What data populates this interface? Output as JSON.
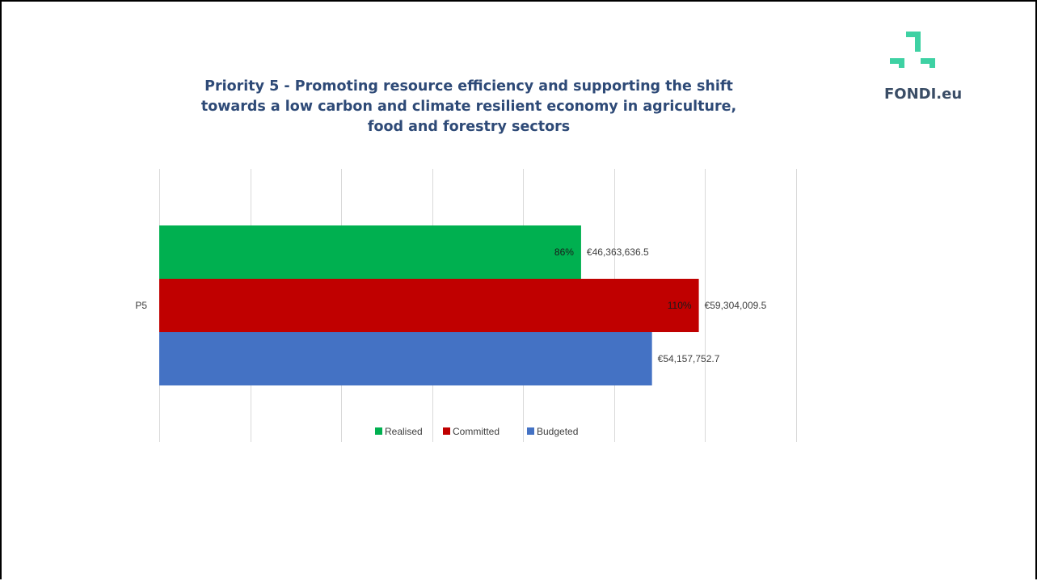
{
  "chart_data": {
    "type": "bar",
    "orientation": "horizontal",
    "title": "Priority 5 - Promoting resource efficiency and supporting the shift towards a low carbon and climate resilient economy in agriculture, food and forestry sectors",
    "title_lines": [
      "Priority 5 - Promoting resource efficiency and supporting the shift",
      "towards a low carbon and climate resilient economy in agriculture,",
      "food and forestry sectors"
    ],
    "categories": [
      "P5"
    ],
    "series": [
      {
        "name": "Realised",
        "color": "#00b050",
        "values": [
          46363636.5
        ],
        "value_labels": [
          "€46,363,636.5"
        ],
        "percent_labels": [
          "86%"
        ]
      },
      {
        "name": "Committed",
        "color": "#c00000",
        "values": [
          59304009.5
        ],
        "value_labels": [
          "€59,304,009.5"
        ],
        "percent_labels": [
          "110%"
        ]
      },
      {
        "name": "Budgeted",
        "color": "#4472c4",
        "values": [
          54157752.7
        ],
        "value_labels": [
          "€54,157,752.7"
        ],
        "percent_labels": [
          ""
        ]
      }
    ],
    "xlim": [
      0,
      70000000
    ],
    "grid": true,
    "legend_position": "bottom"
  },
  "branding": {
    "logo_text": "FONDI.eu",
    "logo_color": "#3ed1a3"
  }
}
